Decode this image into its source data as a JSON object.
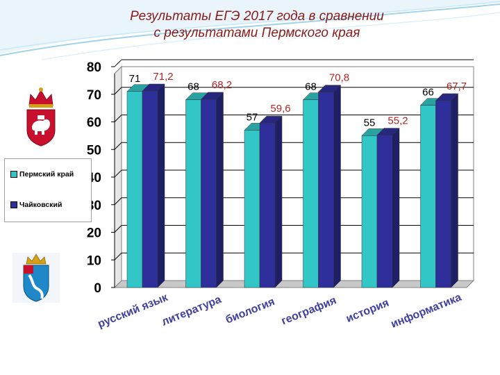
{
  "header": {
    "title_line1": "Результаты ЕГЭ 2017 года в сравнении",
    "title_line2": "с результатами Пермского края"
  },
  "colors": {
    "perm_krai": "#33c6c6",
    "chaikovsky": "#2f2f9c",
    "value_label_perm": "#000000",
    "value_label_chaikovsky": "#b22222",
    "title": "#8b1a1a"
  },
  "emblems": {
    "top": "perm-krai-coat-of-arms-icon",
    "bottom": "chaikovsky-coat-of-arms-icon"
  },
  "chart_data": {
    "type": "bar",
    "title": "Результаты ЕГЭ 2017 года в сравнении с результатами Пермского края",
    "categories": [
      "русский язык",
      "литература",
      "биология",
      "география",
      "история",
      "информатика"
    ],
    "series": [
      {
        "name": "Пермский край",
        "values": [
          71,
          68,
          57,
          68,
          55,
          66
        ],
        "labels": [
          "71",
          "68",
          "57",
          "68",
          "55",
          "66"
        ]
      },
      {
        "name": "Чайковский",
        "values": [
          71.2,
          68.2,
          59.6,
          70.8,
          55.2,
          67.7
        ],
        "labels": [
          "71,2",
          "68,2",
          "59,6",
          "70,8",
          "55,2",
          "67,7"
        ]
      }
    ],
    "ylim": [
      0,
      80
    ],
    "yticks": [
      "0",
      "10",
      "20",
      "30",
      "40",
      "50",
      "60",
      "70",
      "80"
    ],
    "grid": true,
    "legend": "left"
  }
}
